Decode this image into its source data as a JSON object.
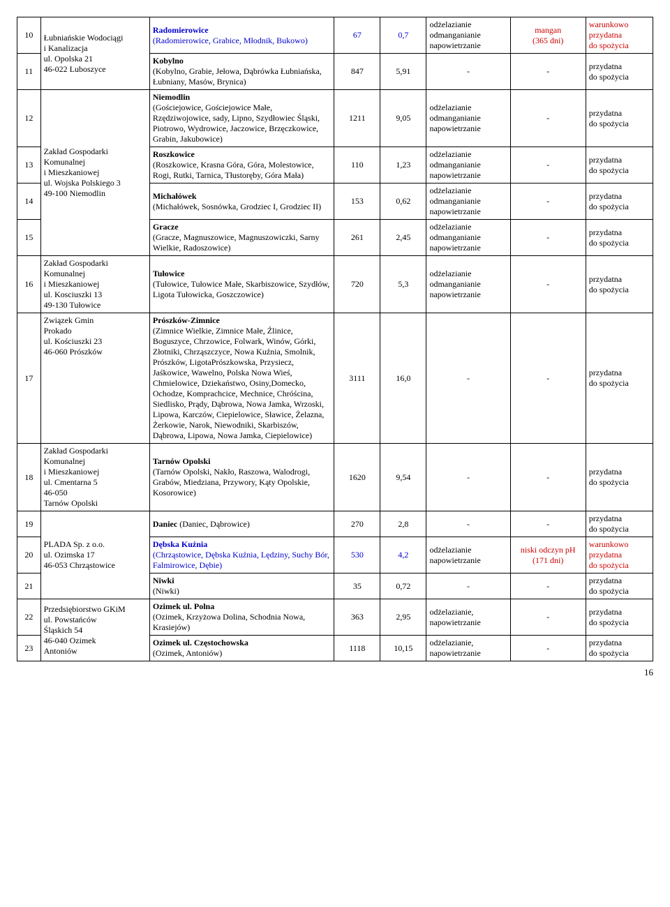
{
  "vals": {
    "v10a": "67",
    "v10b": "0,7",
    "v11a": "847",
    "v11b": "5,91",
    "v12a": "1211",
    "v12b": "9,05",
    "v13a": "110",
    "v13b": "1,23",
    "v14a": "153",
    "v14b": "0,62",
    "v15a": "261",
    "v15b": "2,45",
    "v16a": "720",
    "v16b": "5,3",
    "v17a": "3111",
    "v17b": "16,0",
    "v18a": "1620",
    "v18b": "9,54",
    "v19a": "270",
    "v19b": "2,8",
    "v20a": "530",
    "v20b": "4,2",
    "v21a": "35",
    "v21b": "0,72",
    "v22a": "363",
    "v22b": "2,95",
    "v23a": "1118",
    "v23b": "10,15"
  },
  "txt": {
    "dash": "-",
    "deman": "odżelazianie\nodmanganianie\nnapowietrzanie",
    "denap": "odżelazianie\nnapowietrzanie",
    "denap2": "odżelazianie,\nnapowietrzanie",
    "mangan": "mangan\n(365 dni)",
    "niski": "niski odczyn pH\n(171 dni)",
    "przydatna": "przydatna\ndo spożycia",
    "warunkowo": "warunkowo\nprzydatna\ndo spożycia"
  },
  "rows": {
    "r10": "10",
    "r11": "11",
    "r12": "12",
    "r13": "13",
    "r14": "14",
    "r15": "15",
    "r16": "16",
    "r17": "17",
    "r18": "18",
    "r19": "19",
    "r20": "20",
    "r21": "21",
    "r22": "22",
    "r23": "23"
  },
  "supplier": {
    "s11": "Łubniańskie Wodociągi\ni Kanalizacja\nul. Opolska 21\n46-022 Luboszyce",
    "s12": "Zakład Gospodarki\nKomunalnej\ni Mieszkaniowej\nul. Wojska Polskiego 3\n49-100 Niemodlin",
    "s16": "Zakład Gospodarki\nKomunalnej\n i Mieszkaniowej\nul. Kosciuszki 13\n49-130 Tułowice",
    "s17": "Związek Gmin\nProkado\nul. Kościuszki 23\n46-060 Prószków",
    "s18": "Zakład Gospodarki\nKomunalnej\ni Mieszkaniowej\nul. Cmentarna 5\n46-050\nTarnów Opolski",
    "s19": "PLADA Sp. z o.o.\nul. Ozimska 17\n46-053 Chrząstowice",
    "s22": "Przedsiębiorstwo GKiM\n ul. Powstańców\nŚląskich 54\n46-040 Ozimek\nAntoniów"
  },
  "area": {
    "a10_title": "Radomierowice",
    "a10_body": "(Radomierowice, Grabice, Młodnik, Bukowo)",
    "a11_title": "Kobylno",
    "a11_body": "(Kobylno, Grabie, Jełowa, Dąbrówka Łubniańska, Łubniany, Masów, Brynica)",
    "a12_title": "Niemodlin",
    "a12_body": "(Gościejowice, Gościejowice Małe, Rzędziwojowice, sady, Lipno, Szydłowiec Śląski, Piotrowo, Wydrowice, Jaczowice, Brzęczkowice, Grabin, Jakubowice)",
    "a13_title": "Roszkowice",
    "a13_body": " (Roszkowice, Krasna Góra, Góra, Molestowice, Rogi, Rutki, Tarnica, Tłustoręby, Góra Mała)",
    "a14_title": "Michałówek",
    "a14_body": " (Michałówek, Sosnówka, Grodziec I, Grodziec II)",
    "a15_title": "Gracze",
    "a15_body": "(Gracze, Magnuszowice, Magnuszowiczki, Sarny Wielkie, Radoszowice)",
    "a16_title": "Tułowice",
    "a16_body": "(Tułowice, Tułowice Małe, Skarbiszowice, Szydłów, Ligota Tułowicka, Goszczowice)",
    "a17_title": "Prószków-Zimnice",
    "a17_body": "(Zimnice Wielkie, Zimnice Małe, Źlinice, Boguszyce, Chrzowice, Folwark, Winów, Górki, Złotniki, Chrząszczyce, Nowa Kuźnia, Smolnik, Prószków, LigotaPrószkowska, Przysiecz, Jaśkowice, Wawelno, Polska Nowa Wieś, Chmielowice, Dziekaństwo, Osiny,Domecko, Ochodze, Komprachcice, Mechnice, Chróścina, Siedlisko, Prądy, Dąbrowa, Nowa Jamka, Wrzoski, Lipowa, Karczów, Ciepielowice, Sławice, Żelazna, Żerkowie, Narok, Niewodniki, Skarbiszów, Dąbrowa, Lipowa, Nowa Jamka, Ciepielowice)",
    "a18_title": "Tarnów Opolski",
    "a18_body": "(Tarnów Opolski, Nakło, Raszowa, Walodrogi, Grabów, Miedziana, Przywory, Kąty Opolskie, Kosorowice)",
    "a19_title": "Daniec ",
    "a19_body": "(Daniec, Dąbrowice)",
    "a20_title": "Dębska Kuźnia",
    "a20_body": "(Chrząstowice, Dębska Kuźnia, Lędziny, Suchy Bór, Falmirowice, Dębie)",
    "a21_title": "Niwki",
    "a21_body": "(Niwki)",
    "a22_title": "Ozimek ul. Polna",
    "a22_body": "(Ozimek, Krzyżowa Dolina, Schodnia Nowa, Krasiejów)",
    "a23_title": "Ozimek ul. Częstochowska",
    "a23_body": "(Ozimek, Antoniów)"
  },
  "pageNum": "16"
}
